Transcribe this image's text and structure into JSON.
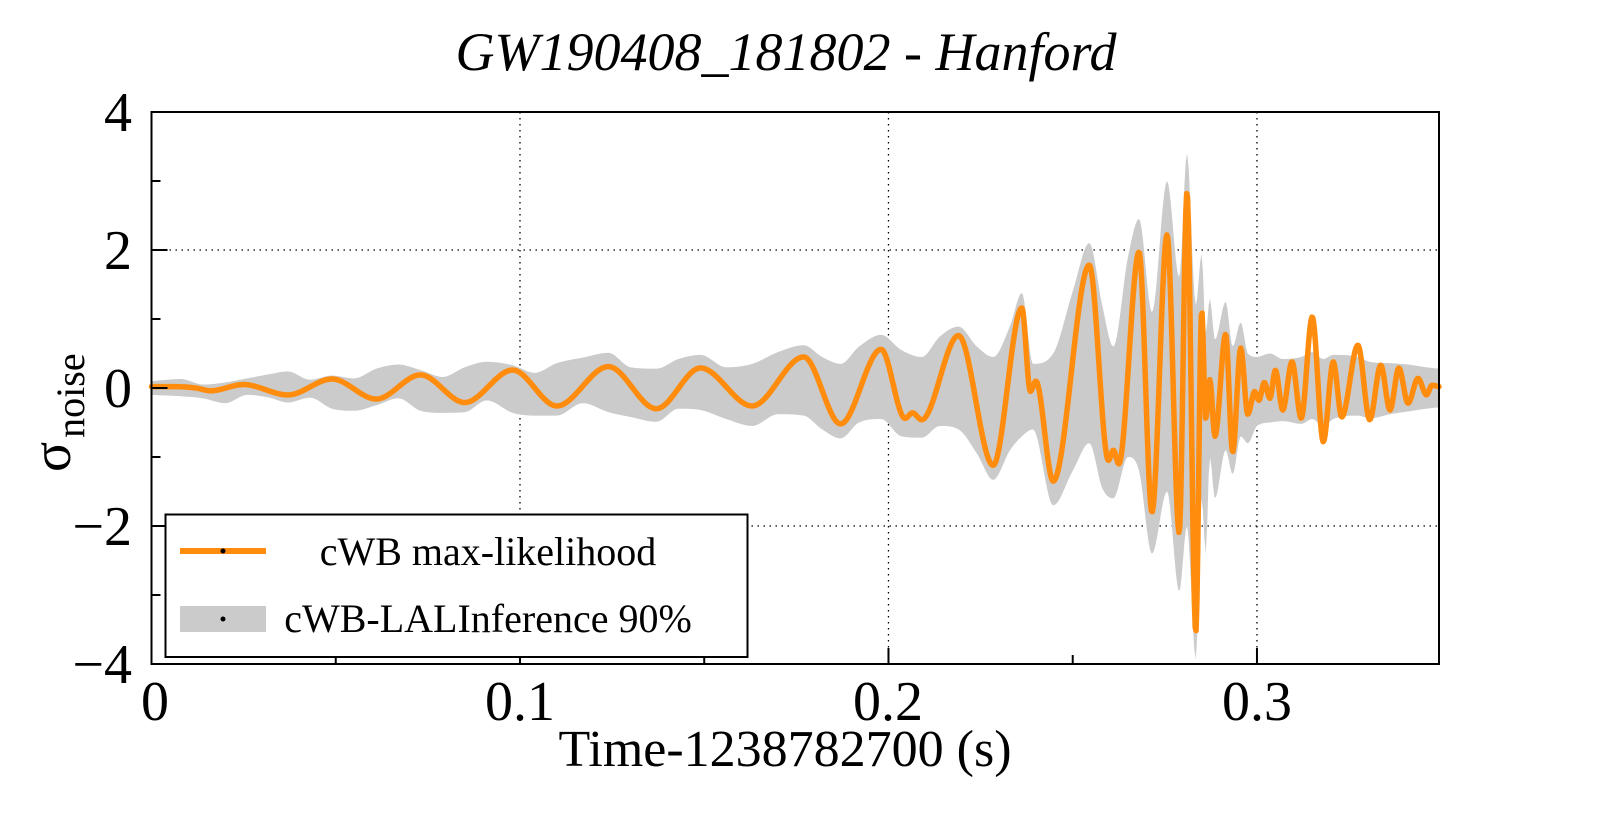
{
  "title": "GW190408_181802 - Hanford",
  "axes": {
    "x": {
      "title": "Time-1238782700 (s)",
      "min": 0,
      "max": 0.3494,
      "ticks": [
        {
          "value": 0,
          "label": "0"
        },
        {
          "value": 0.1,
          "label": "0.1"
        },
        {
          "value": 0.2,
          "label": "0.2"
        },
        {
          "value": 0.3,
          "label": "0.3"
        }
      ],
      "minor_step": 0.05,
      "gridlines": [
        0.1,
        0.2,
        0.3
      ]
    },
    "y": {
      "title": "σ_noise",
      "title_main": "σ",
      "title_sub": "noise",
      "min": -4,
      "max": 4,
      "ticks": [
        {
          "value": 4,
          "label": "4"
        },
        {
          "value": 2,
          "label": "2"
        },
        {
          "value": 0,
          "label": "0"
        },
        {
          "value": -2,
          "label": "−2"
        },
        {
          "value": -4,
          "label": "−4"
        }
      ],
      "minor_step": 1,
      "gridlines": [
        2,
        0,
        -2
      ]
    }
  },
  "legend": {
    "entries": [
      {
        "label": "cWB max-likelihood",
        "type": "line",
        "color": "#ff8c0d"
      },
      {
        "label": "cWB-LALInference 90%",
        "type": "band",
        "color": "#cbcbcb"
      }
    ]
  },
  "colors": {
    "line": "#ff8c0d",
    "band": "#cbcbcb",
    "axis": "#000000",
    "grid": "#000000",
    "background": "#ffffff"
  },
  "chart_data": {
    "type": "line",
    "title": "GW190408_181802 - Hanford",
    "xlabel": "Time-1238782700 (s)",
    "ylabel": "σ_noise",
    "xlim": [
      0,
      0.3494
    ],
    "ylim": [
      -4,
      4
    ],
    "grid": true,
    "legend_position": "bottom-left",
    "series": [
      {
        "name": "cWB max-likelihood",
        "style": "line",
        "color": "#ff8c0d",
        "points": [
          [
            0.0,
            0.02
          ],
          [
            0.006,
            0.02
          ],
          [
            0.012,
            0.0
          ],
          [
            0.016,
            -0.04
          ],
          [
            0.025,
            0.05
          ],
          [
            0.037,
            -0.1
          ],
          [
            0.049,
            0.13
          ],
          [
            0.061,
            -0.16
          ],
          [
            0.073,
            0.19
          ],
          [
            0.085,
            -0.21
          ],
          [
            0.098,
            0.26
          ],
          [
            0.11,
            -0.26
          ],
          [
            0.124,
            0.31
          ],
          [
            0.137,
            -0.3
          ],
          [
            0.149,
            0.29
          ],
          [
            0.163,
            -0.26
          ],
          [
            0.177,
            0.45
          ],
          [
            0.187,
            -0.52
          ],
          [
            0.198,
            0.56
          ],
          [
            0.2045,
            -0.44
          ],
          [
            0.2065,
            -0.36
          ],
          [
            0.209,
            -0.46
          ],
          [
            0.219,
            0.76
          ],
          [
            0.2284,
            -1.12
          ],
          [
            0.2362,
            1.16
          ],
          [
            0.2385,
            -0.05
          ],
          [
            0.24,
            0.1
          ],
          [
            0.2447,
            -1.35
          ],
          [
            0.2545,
            1.78
          ],
          [
            0.2597,
            -1.05
          ],
          [
            0.261,
            -0.9
          ],
          [
            0.2625,
            -1.1
          ],
          [
            0.268,
            1.97
          ],
          [
            0.2715,
            -1.8
          ],
          [
            0.2756,
            2.22
          ],
          [
            0.2789,
            -2.1
          ],
          [
            0.281,
            2.84
          ],
          [
            0.2834,
            -3.55
          ],
          [
            0.285,
            1.13
          ],
          [
            0.2861,
            -0.45
          ],
          [
            0.2872,
            0.12
          ],
          [
            0.2886,
            -0.7
          ],
          [
            0.2915,
            0.78
          ],
          [
            0.2934,
            -0.93
          ],
          [
            0.2956,
            0.58
          ],
          [
            0.2975,
            -0.38
          ],
          [
            0.2994,
            -0.05
          ],
          [
            0.3005,
            -0.18
          ],
          [
            0.302,
            0.08
          ],
          [
            0.3035,
            -0.15
          ],
          [
            0.305,
            0.26
          ],
          [
            0.307,
            -0.32
          ],
          [
            0.3095,
            0.38
          ],
          [
            0.312,
            -0.44
          ],
          [
            0.315,
            1.03
          ],
          [
            0.318,
            -0.78
          ],
          [
            0.3207,
            0.38
          ],
          [
            0.323,
            -0.42
          ],
          [
            0.3274,
            0.62
          ],
          [
            0.3306,
            -0.46
          ],
          [
            0.3336,
            0.33
          ],
          [
            0.3361,
            -0.32
          ],
          [
            0.3385,
            0.29
          ],
          [
            0.341,
            -0.22
          ],
          [
            0.3437,
            0.14
          ],
          [
            0.346,
            -0.1
          ],
          [
            0.3475,
            0.04
          ],
          [
            0.3494,
            0.02
          ]
        ]
      },
      {
        "name": "cWB-LALInference 90%",
        "style": "band",
        "color": "#cbcbcb",
        "envelope": [
          [
            0.0,
            0.1,
            -0.1
          ],
          [
            0.008,
            0.13,
            -0.12
          ],
          [
            0.014,
            0.05,
            -0.15
          ],
          [
            0.02,
            0.08,
            -0.22
          ],
          [
            0.026,
            0.14,
            -0.1
          ],
          [
            0.032,
            0.2,
            -0.14
          ],
          [
            0.037,
            0.24,
            -0.21
          ],
          [
            0.043,
            0.12,
            -0.14
          ],
          [
            0.049,
            0.18,
            -0.3
          ],
          [
            0.055,
            0.14,
            -0.33
          ],
          [
            0.061,
            0.28,
            -0.25
          ],
          [
            0.067,
            0.34,
            -0.15
          ],
          [
            0.073,
            0.26,
            -0.33
          ],
          [
            0.079,
            0.16,
            -0.36
          ],
          [
            0.085,
            0.3,
            -0.35
          ],
          [
            0.091,
            0.38,
            -0.18
          ],
          [
            0.098,
            0.33,
            -0.36
          ],
          [
            0.104,
            0.22,
            -0.4
          ],
          [
            0.11,
            0.36,
            -0.4
          ],
          [
            0.117,
            0.44,
            -0.22
          ],
          [
            0.124,
            0.51,
            -0.35
          ],
          [
            0.13,
            0.3,
            -0.42
          ],
          [
            0.137,
            0.28,
            -0.49
          ],
          [
            0.143,
            0.42,
            -0.3
          ],
          [
            0.149,
            0.48,
            -0.32
          ],
          [
            0.156,
            0.3,
            -0.45
          ],
          [
            0.163,
            0.35,
            -0.55
          ],
          [
            0.17,
            0.52,
            -0.38
          ],
          [
            0.177,
            0.62,
            -0.4
          ],
          [
            0.182,
            0.45,
            -0.6
          ],
          [
            0.187,
            0.35,
            -0.73
          ],
          [
            0.192,
            0.6,
            -0.5
          ],
          [
            0.198,
            0.77,
            -0.45
          ],
          [
            0.2035,
            0.55,
            -0.7
          ],
          [
            0.209,
            0.45,
            -0.72
          ],
          [
            0.214,
            0.75,
            -0.55
          ],
          [
            0.219,
            0.89,
            -0.6
          ],
          [
            0.224,
            0.6,
            -0.95
          ],
          [
            0.2284,
            0.45,
            -1.33
          ],
          [
            0.233,
            0.9,
            -0.9
          ],
          [
            0.2362,
            1.38,
            -0.7
          ],
          [
            0.2392,
            0.35,
            -0.6
          ],
          [
            0.2447,
            0.5,
            -1.7
          ],
          [
            0.25,
            1.4,
            -1.2
          ],
          [
            0.2545,
            2.1,
            -0.8
          ],
          [
            0.258,
            1.2,
            -1.45
          ],
          [
            0.261,
            0.6,
            -1.6
          ],
          [
            0.265,
            1.9,
            -1.0
          ],
          [
            0.268,
            2.45,
            -1.2
          ],
          [
            0.2715,
            1.1,
            -2.4
          ],
          [
            0.2756,
            3.0,
            -1.5
          ],
          [
            0.2789,
            1.6,
            -2.95
          ],
          [
            0.281,
            3.4,
            -2.0
          ],
          [
            0.2834,
            1.2,
            -3.93
          ],
          [
            0.285,
            1.95,
            -1.6
          ],
          [
            0.2861,
            0.8,
            -2.4
          ],
          [
            0.2872,
            1.3,
            -1.0
          ],
          [
            0.2886,
            0.7,
            -1.6
          ],
          [
            0.2915,
            1.25,
            -0.9
          ],
          [
            0.2934,
            0.6,
            -1.25
          ],
          [
            0.2956,
            0.95,
            -0.7
          ],
          [
            0.2975,
            0.5,
            -0.8
          ],
          [
            0.3,
            0.45,
            -0.55
          ],
          [
            0.3035,
            0.5,
            -0.5
          ],
          [
            0.307,
            0.42,
            -0.48
          ],
          [
            0.312,
            0.45,
            -0.52
          ],
          [
            0.315,
            0.52,
            -0.45
          ],
          [
            0.318,
            0.42,
            -0.55
          ],
          [
            0.3207,
            0.48,
            -0.45
          ],
          [
            0.3274,
            0.45,
            -0.4
          ],
          [
            0.3306,
            0.38,
            -0.44
          ],
          [
            0.3361,
            0.36,
            -0.38
          ],
          [
            0.341,
            0.34,
            -0.34
          ],
          [
            0.346,
            0.3,
            -0.3
          ],
          [
            0.3494,
            0.28,
            -0.28
          ]
        ]
      }
    ]
  }
}
